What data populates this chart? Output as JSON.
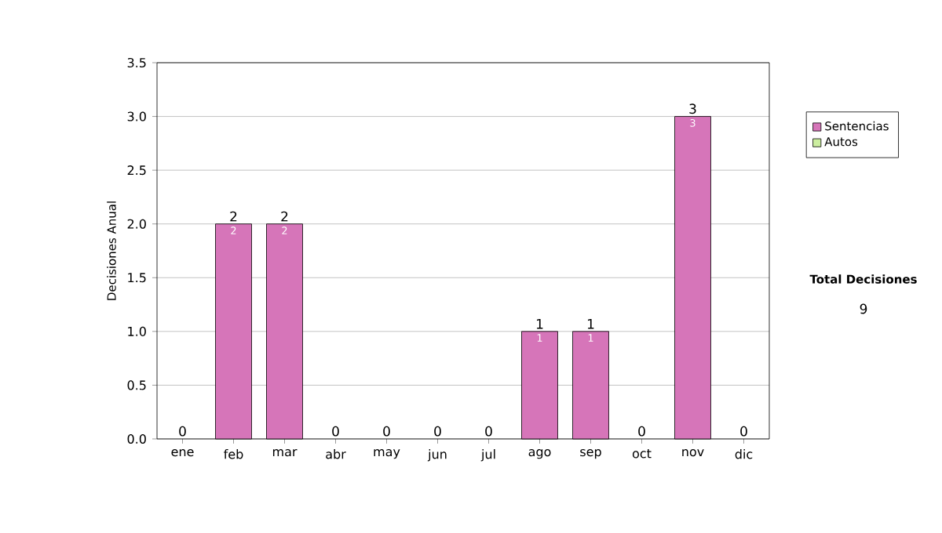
{
  "chart_data": {
    "type": "bar",
    "stacked": true,
    "ylabel": "Decisiones Anual",
    "categories": [
      "ene",
      "feb",
      "mar",
      "abr",
      "may",
      "jun",
      "jul",
      "ago",
      "sep",
      "oct",
      "nov",
      "dic"
    ],
    "series": [
      {
        "name": "Sentencias",
        "color": "#d675b9",
        "values": [
          0,
          2,
          2,
          0,
          0,
          0,
          0,
          1,
          1,
          0,
          3,
          0
        ],
        "value_labels": [
          null,
          "2",
          "2",
          null,
          null,
          null,
          null,
          "1",
          "1",
          null,
          "3",
          null
        ]
      },
      {
        "name": "Autos",
        "color": "#cceea0",
        "values": [
          0,
          0,
          0,
          0,
          0,
          0,
          0,
          0,
          0,
          0,
          0,
          0
        ]
      }
    ],
    "totals": [
      "0",
      "2",
      "2",
      "0",
      "0",
      "0",
      "0",
      "1",
      "1",
      "0",
      "3",
      "0"
    ],
    "ylim": [
      0,
      3.5
    ],
    "yticks": [
      {
        "value": 0,
        "label": "0.0"
      },
      {
        "value": 0.5,
        "label": "0.5"
      },
      {
        "value": 1,
        "label": "1.0"
      },
      {
        "value": 1.5,
        "label": "1.5"
      },
      {
        "value": 2,
        "label": "2.0"
      },
      {
        "value": 2.5,
        "label": "2.5"
      },
      {
        "value": 3,
        "label": "3.0"
      },
      {
        "value": 3.5,
        "label": "3.5"
      }
    ],
    "grid": "y",
    "legend": "right",
    "annotations": [
      "Total Decisiones",
      "9"
    ]
  }
}
